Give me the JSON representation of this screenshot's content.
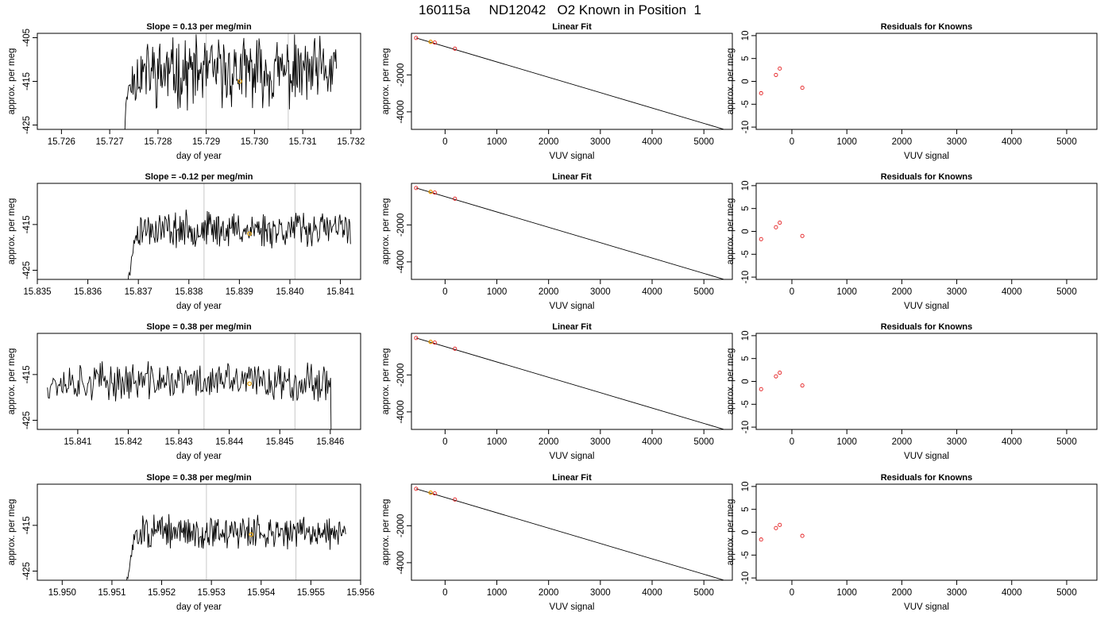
{
  "main_title": "160115a     ND12042   O2 Known in Position  1",
  "colors": {
    "trace": "#000000",
    "vline": "#c8c8c8",
    "marker": "#e69f00",
    "known": "#e41a1c",
    "fit": "#000000"
  },
  "chart_data": [
    {
      "type": "line",
      "row": 0,
      "panel": "trace",
      "title": "Slope =  0.13  per meg/min",
      "xlabel": "day of year",
      "ylabel": "approx. per meg",
      "xlim": [
        15.7255,
        15.7322
      ],
      "ylim": [
        -426,
        -404
      ],
      "xticks": [
        15.726,
        15.727,
        15.728,
        15.729,
        15.73,
        15.731,
        15.732
      ],
      "xtick_labels": [
        "15.726",
        "15.727",
        "15.728",
        "15.729",
        "15.730",
        "15.731",
        "15.732"
      ],
      "yticks": [
        -405,
        -415,
        -425
      ],
      "ytick_labels": [
        "-405",
        "-415",
        "-425"
      ],
      "vlines": [
        15.729,
        15.7307
      ],
      "marker": [
        15.7297,
        -415
      ],
      "start": 15.7272,
      "stop": 15.7317,
      "level": -413,
      "noise": 6.5,
      "seed": 11
    },
    {
      "type": "scatter",
      "row": 0,
      "panel": "fit",
      "title": "Linear Fit",
      "xlabel": "VUV signal",
      "ylabel": "approx. per meg",
      "xlim": [
        -650,
        5550
      ],
      "ylim": [
        -4950,
        250
      ],
      "xticks": [
        0,
        1000,
        2000,
        3000,
        4000,
        5000
      ],
      "xtick_labels": [
        "0",
        "1000",
        "2000",
        "3000",
        "4000",
        "5000"
      ],
      "yticks": [
        -2000,
        -4000
      ],
      "ytick_labels": [
        "-2000",
        "-4000"
      ],
      "points": [
        [
          -560,
          0
        ],
        [
          -280,
          -210
        ],
        [
          -200,
          -250
        ],
        [
          190,
          -580
        ]
      ],
      "highlight": [
        -280,
        -210
      ],
      "fit_line": [
        [
          -560,
          0
        ],
        [
          5380,
          -4940
        ]
      ]
    },
    {
      "type": "scatter",
      "row": 0,
      "panel": "resid",
      "title": "Residuals for Knowns",
      "xlabel": "VUV signal",
      "ylabel": "approx. per meg",
      "xlim": [
        -650,
        5550
      ],
      "ylim": [
        -10.5,
        10.5
      ],
      "xticks": [
        0,
        1000,
        2000,
        3000,
        4000,
        5000
      ],
      "xtick_labels": [
        "0",
        "1000",
        "2000",
        "3000",
        "4000",
        "5000"
      ],
      "yticks": [
        10,
        5,
        0,
        -5,
        -10
      ],
      "ytick_labels": [
        "10",
        "5",
        "0",
        "-5",
        "-10"
      ],
      "points": [
        [
          -560,
          -2.6
        ],
        [
          -290,
          1.4
        ],
        [
          -220,
          2.8
        ],
        [
          190,
          -1.4
        ]
      ]
    },
    {
      "type": "line",
      "row": 1,
      "panel": "trace",
      "title": "Slope =  -0.12  per meg/min",
      "xlabel": "day of year",
      "ylabel": "approx. per meg",
      "xlim": [
        15.835,
        15.8414
      ],
      "ylim": [
        -427,
        -406
      ],
      "xticks": [
        15.835,
        15.836,
        15.837,
        15.838,
        15.839,
        15.84,
        15.841
      ],
      "xtick_labels": [
        "15.835",
        "15.836",
        "15.837",
        "15.838",
        "15.839",
        "15.840",
        "15.841"
      ],
      "yticks": [
        -415,
        -425
      ],
      "ytick_labels": [
        "-415",
        "-425"
      ],
      "vlines": [
        15.8383,
        15.8401
      ],
      "marker": [
        15.8392,
        -417
      ],
      "start": 15.8367,
      "stop": 15.8412,
      "level": -416,
      "noise": 3.2,
      "seed": 23
    },
    {
      "type": "scatter",
      "row": 1,
      "panel": "fit",
      "title": "Linear Fit",
      "xlabel": "VUV signal",
      "ylabel": "approx. per meg",
      "xlim": [
        -650,
        5550
      ],
      "ylim": [
        -4950,
        250
      ],
      "xticks": [
        0,
        1000,
        2000,
        3000,
        4000,
        5000
      ],
      "xtick_labels": [
        "0",
        "1000",
        "2000",
        "3000",
        "4000",
        "5000"
      ],
      "yticks": [
        -2000,
        -4000
      ],
      "ytick_labels": [
        "-2000",
        "-4000"
      ],
      "points": [
        [
          -560,
          0
        ],
        [
          -280,
          -210
        ],
        [
          -200,
          -250
        ],
        [
          190,
          -580
        ]
      ],
      "highlight": [
        -280,
        -210
      ],
      "fit_line": [
        [
          -560,
          0
        ],
        [
          5380,
          -4940
        ]
      ]
    },
    {
      "type": "scatter",
      "row": 1,
      "panel": "resid",
      "title": "Residuals for Knowns",
      "xlabel": "VUV signal",
      "ylabel": "approx. per meg",
      "xlim": [
        -650,
        5550
      ],
      "ylim": [
        -10.5,
        10.5
      ],
      "xticks": [
        0,
        1000,
        2000,
        3000,
        4000,
        5000
      ],
      "xtick_labels": [
        "0",
        "1000",
        "2000",
        "3000",
        "4000",
        "5000"
      ],
      "yticks": [
        10,
        5,
        0,
        -5,
        -10
      ],
      "ytick_labels": [
        "10",
        "5",
        "0",
        "-5",
        "-10"
      ],
      "points": [
        [
          -560,
          -1.7
        ],
        [
          -290,
          0.9
        ],
        [
          -220,
          1.9
        ],
        [
          190,
          -1.0
        ]
      ]
    },
    {
      "type": "line",
      "row": 2,
      "panel": "trace",
      "title": "Slope =  0.38  per meg/min",
      "xlabel": "day of year",
      "ylabel": "approx. per meg",
      "xlim": [
        15.8402,
        15.8466
      ],
      "ylim": [
        -427,
        -406
      ],
      "xticks": [
        15.841,
        15.842,
        15.843,
        15.844,
        15.845,
        15.846
      ],
      "xtick_labels": [
        "15.841",
        "15.842",
        "15.843",
        "15.844",
        "15.845",
        "15.846"
      ],
      "yticks": [
        -415,
        -425
      ],
      "ytick_labels": [
        "-415",
        "-425"
      ],
      "vlines": [
        15.8435,
        15.8453
      ],
      "marker": [
        15.8444,
        -417
      ],
      "start": 15.8404,
      "stop": 15.8461,
      "level": -416.5,
      "noise": 3.4,
      "seed": 37,
      "drop_end": true
    },
    {
      "type": "scatter",
      "row": 2,
      "panel": "fit",
      "title": "Linear Fit",
      "xlabel": "VUV signal",
      "ylabel": "approx. per meg",
      "xlim": [
        -650,
        5550
      ],
      "ylim": [
        -4950,
        250
      ],
      "xticks": [
        0,
        1000,
        2000,
        3000,
        4000,
        5000
      ],
      "xtick_labels": [
        "0",
        "1000",
        "2000",
        "3000",
        "4000",
        "5000"
      ],
      "yticks": [
        -2000,
        -4000
      ],
      "ytick_labels": [
        "-2000",
        "-4000"
      ],
      "points": [
        [
          -560,
          0
        ],
        [
          -280,
          -210
        ],
        [
          -200,
          -250
        ],
        [
          190,
          -580
        ]
      ],
      "highlight": [
        -280,
        -210
      ],
      "fit_line": [
        [
          -560,
          0
        ],
        [
          5380,
          -4940
        ]
      ]
    },
    {
      "type": "scatter",
      "row": 2,
      "panel": "resid",
      "title": "Residuals for Knowns",
      "xlabel": "VUV signal",
      "ylabel": "approx. per meg",
      "xlim": [
        -650,
        5550
      ],
      "ylim": [
        -10.5,
        10.5
      ],
      "xticks": [
        0,
        1000,
        2000,
        3000,
        4000,
        5000
      ],
      "xtick_labels": [
        "0",
        "1000",
        "2000",
        "3000",
        "4000",
        "5000"
      ],
      "yticks": [
        10,
        5,
        0,
        -5,
        -10
      ],
      "ytick_labels": [
        "10",
        "5",
        "0",
        "-5",
        "-10"
      ],
      "points": [
        [
          -560,
          -1.7
        ],
        [
          -290,
          1.1
        ],
        [
          -220,
          1.9
        ],
        [
          190,
          -0.9
        ]
      ]
    },
    {
      "type": "line",
      "row": 3,
      "panel": "trace",
      "title": "Slope =  0.38  per meg/min",
      "xlabel": "day of year",
      "ylabel": "approx. per meg",
      "xlim": [
        15.9495,
        15.956
      ],
      "ylim": [
        -427,
        -406
      ],
      "xticks": [
        15.95,
        15.951,
        15.952,
        15.953,
        15.954,
        15.955,
        15.956
      ],
      "xtick_labels": [
        "15.950",
        "15.951",
        "15.952",
        "15.953",
        "15.954",
        "15.955",
        "15.956"
      ],
      "yticks": [
        -415,
        -425
      ],
      "ytick_labels": [
        "-415",
        "-425"
      ],
      "vlines": [
        15.9529,
        15.9547
      ],
      "marker": [
        15.9538,
        -417
      ],
      "start": 15.9512,
      "stop": 15.9557,
      "level": -416.5,
      "noise": 3.0,
      "seed": 51
    },
    {
      "type": "scatter",
      "row": 3,
      "panel": "fit",
      "title": "Linear Fit",
      "xlabel": "VUV signal",
      "ylabel": "approx. per meg",
      "xlim": [
        -650,
        5550
      ],
      "ylim": [
        -4950,
        250
      ],
      "xticks": [
        0,
        1000,
        2000,
        3000,
        4000,
        5000
      ],
      "xtick_labels": [
        "0",
        "1000",
        "2000",
        "3000",
        "4000",
        "5000"
      ],
      "yticks": [
        -2000,
        -4000
      ],
      "ytick_labels": [
        "-2000",
        "-4000"
      ],
      "points": [
        [
          -560,
          0
        ],
        [
          -280,
          -210
        ],
        [
          -200,
          -250
        ],
        [
          190,
          -580
        ]
      ],
      "highlight": [
        -280,
        -210
      ],
      "fit_line": [
        [
          -560,
          0
        ],
        [
          5380,
          -4940
        ]
      ]
    },
    {
      "type": "scatter",
      "row": 3,
      "panel": "resid",
      "title": "Residuals for Knowns",
      "xlabel": "VUV signal",
      "ylabel": "approx. per meg",
      "xlim": [
        -650,
        5550
      ],
      "ylim": [
        -10.5,
        10.5
      ],
      "xticks": [
        0,
        1000,
        2000,
        3000,
        4000,
        5000
      ],
      "xtick_labels": [
        "0",
        "1000",
        "2000",
        "3000",
        "4000",
        "5000"
      ],
      "yticks": [
        10,
        5,
        0,
        -5,
        -10
      ],
      "ytick_labels": [
        "10",
        "5",
        "0",
        "-5",
        "-10"
      ],
      "points": [
        [
          -560,
          -1.6
        ],
        [
          -290,
          0.9
        ],
        [
          -220,
          1.6
        ],
        [
          190,
          -0.8
        ]
      ]
    }
  ]
}
